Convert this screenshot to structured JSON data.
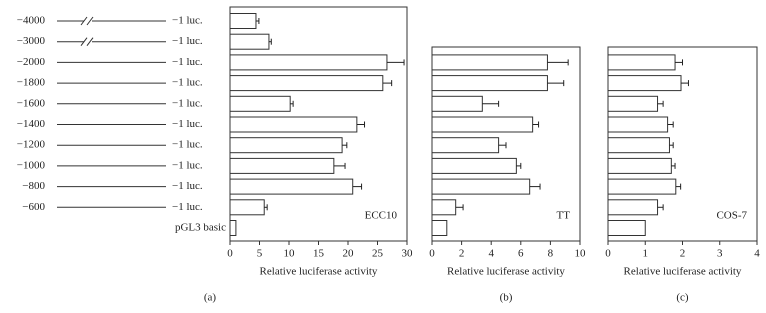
{
  "chart_data": [
    {
      "type": "bar",
      "orientation": "horizontal",
      "color": "#ffffff",
      "categories": [
        "−4000",
        "−3000",
        "−2000",
        "−1800",
        "−1600",
        "−1400",
        "−1200",
        "−1000",
        "−800",
        "−600",
        "pGL3 basic"
      ],
      "category_end_labels": [
        "−1 luc.",
        "−1 luc.",
        "−1 luc.",
        "−1 luc.",
        "−1 luc.",
        "−1 luc.",
        "−1 luc.",
        "−1 luc.",
        "−1 luc.",
        "−1 luc.",
        null
      ],
      "breaks": [
        true,
        true,
        false,
        false,
        false,
        false,
        false,
        false,
        false,
        false,
        false
      ],
      "values": [
        4.4,
        6.6,
        26.6,
        25.9,
        10.2,
        21.5,
        19,
        17.6,
        20.8,
        5.8,
        1.0
      ],
      "errors": [
        0.5,
        0.4,
        2.9,
        1.5,
        0.5,
        1.3,
        0.8,
        1.9,
        1.5,
        0.5,
        null
      ],
      "xlim": [
        0,
        30
      ],
      "xticks": [
        0,
        5,
        10,
        15,
        20,
        25,
        30
      ],
      "xlabel": "Relative luciferase activity",
      "annotation": "ECC10",
      "panel_label": "(a)"
    },
    {
      "type": "bar",
      "orientation": "horizontal",
      "color": "#ffffff",
      "values": [
        null,
        null,
        7.8,
        7.8,
        3.4,
        6.8,
        4.5,
        5.7,
        6.6,
        1.6,
        1.0
      ],
      "errors": [
        null,
        null,
        1.4,
        1.1,
        1.1,
        0.4,
        0.5,
        0.3,
        0.7,
        0.5,
        null
      ],
      "xlim": [
        0,
        10
      ],
      "xticks": [
        0,
        2,
        4,
        6,
        8,
        10
      ],
      "xlabel": "Relative luciferase activity",
      "annotation": "TT",
      "panel_label": "(b)"
    },
    {
      "type": "bar",
      "orientation": "horizontal",
      "color": "#ffffff",
      "values": [
        null,
        null,
        1.8,
        1.96,
        1.33,
        1.6,
        1.65,
        1.7,
        1.82,
        1.33,
        1.0
      ],
      "errors": [
        null,
        null,
        0.2,
        0.2,
        0.15,
        0.15,
        0.1,
        0.1,
        0.13,
        0.15,
        null
      ],
      "xlim": [
        0,
        4
      ],
      "xticks": [
        0,
        1,
        2,
        3,
        4
      ],
      "xlabel": "Relative luciferase activity",
      "annotation": "COS-7",
      "panel_label": "(c)"
    }
  ]
}
